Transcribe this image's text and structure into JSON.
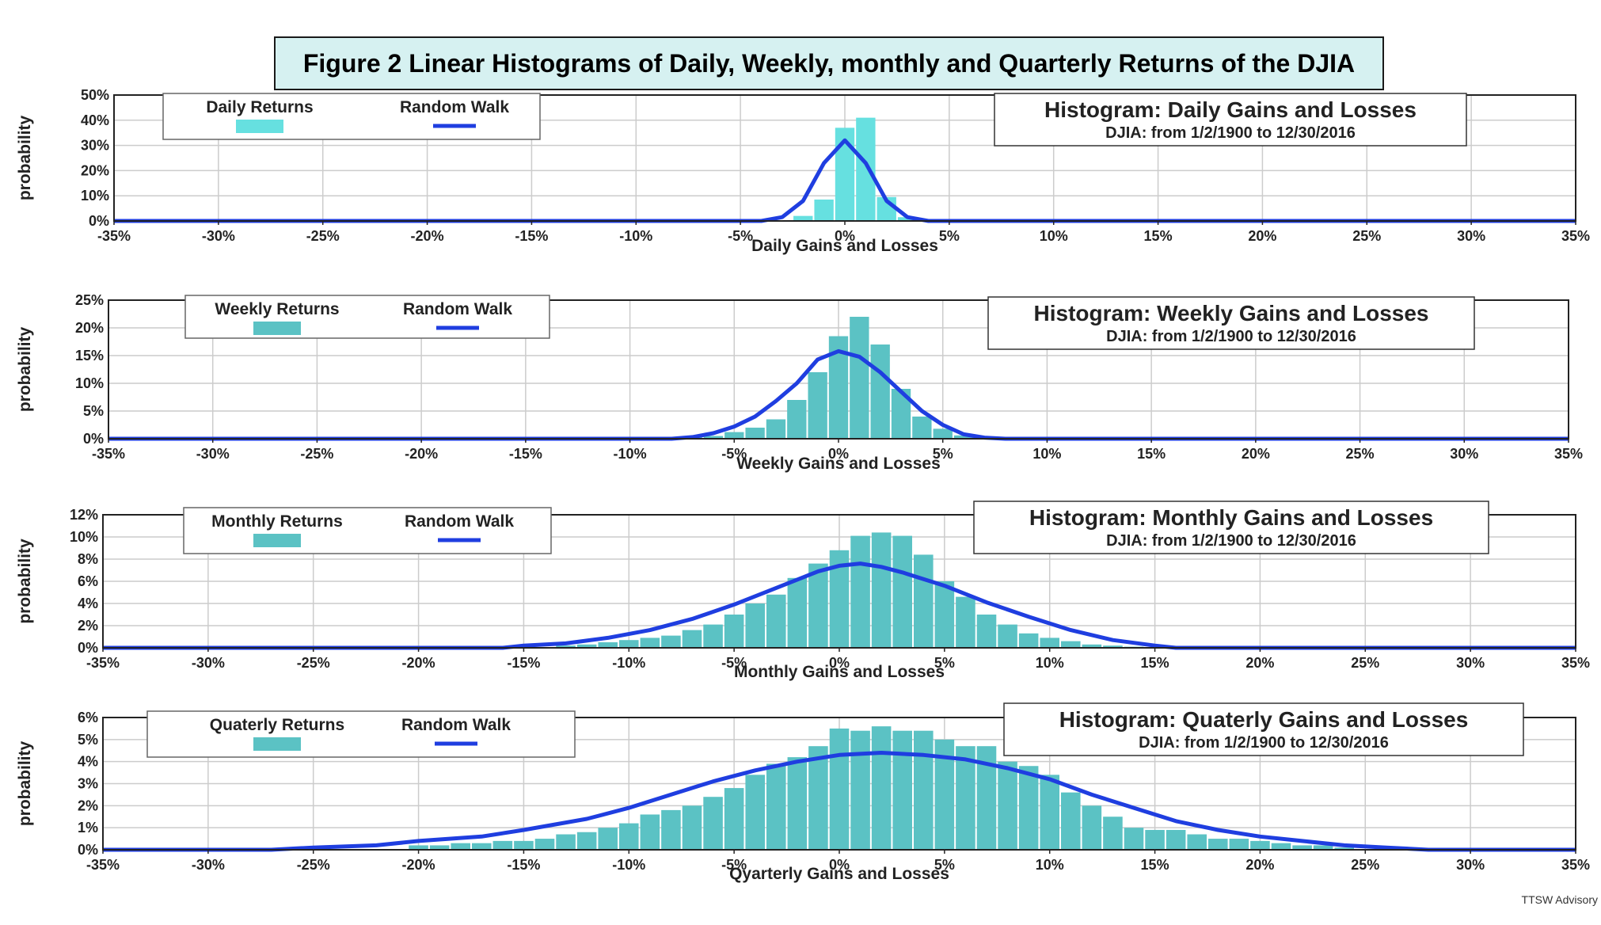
{
  "figure_title": "Figure 2 Linear Histograms of Daily, Weekly, monthly and Quarterly Returns of the DJIA",
  "watermark": "TTSW Advisory",
  "colors": {
    "bar_daily": "#66e0e0",
    "bar_other": "#5bc2c4",
    "line": "#1f3ee0",
    "grid": "#cccccc",
    "axis": "#222222"
  },
  "chart_data": [
    {
      "id": "daily",
      "type": "bar",
      "box_title": "Histogram: Daily Gains and Losses",
      "box_subtitle": "DJIA: from  1/2/1900  to  12/30/2016",
      "legend": [
        "Daily Returns",
        "Random Walk"
      ],
      "ylabel": "probability",
      "xlabel": "Daily Gains and Losses",
      "xlim": [
        -35,
        35
      ],
      "ylim": [
        0,
        50
      ],
      "xticks": [
        -35,
        -30,
        -25,
        -20,
        -15,
        -10,
        -5,
        0,
        5,
        10,
        15,
        20,
        25,
        30,
        35
      ],
      "yticks": [
        0,
        10,
        20,
        30,
        40,
        50
      ],
      "bin_width": 1,
      "bars": [
        [
          -3,
          0.2
        ],
        [
          -2,
          2.0
        ],
        [
          -1,
          8.5
        ],
        [
          0,
          37
        ],
        [
          1,
          41
        ],
        [
          2,
          9.5
        ],
        [
          3,
          1.5
        ],
        [
          4,
          0.3
        ]
      ],
      "random_walk": [
        [
          -35,
          0
        ],
        [
          -4,
          0
        ],
        [
          -3,
          1.5
        ],
        [
          -2,
          8
        ],
        [
          -1,
          23
        ],
        [
          0,
          32
        ],
        [
          1,
          23
        ],
        [
          2,
          8
        ],
        [
          3,
          1.5
        ],
        [
          4,
          0
        ],
        [
          35,
          0
        ]
      ]
    },
    {
      "id": "weekly",
      "type": "bar",
      "box_title": "Histogram: Weekly Gains and Losses",
      "box_subtitle": "DJIA: from  1/2/1900  to  12/30/2016",
      "legend": [
        "Weekly Returns",
        "Random Walk"
      ],
      "ylabel": "probability",
      "xlabel": "Weekly Gains and Losses",
      "xlim": [
        -35,
        35
      ],
      "ylim": [
        0,
        25
      ],
      "xticks": [
        -35,
        -30,
        -25,
        -20,
        -15,
        -10,
        -5,
        0,
        5,
        10,
        15,
        20,
        25,
        30,
        35
      ],
      "yticks": [
        0,
        5,
        10,
        15,
        20,
        25
      ],
      "bin_width": 1,
      "bars": [
        [
          -8,
          0.2
        ],
        [
          -7,
          0.3
        ],
        [
          -6,
          0.5
        ],
        [
          -5,
          1.2
        ],
        [
          -4,
          2.0
        ],
        [
          -3,
          3.5
        ],
        [
          -2,
          7.0
        ],
        [
          -1,
          12
        ],
        [
          0,
          18.5
        ],
        [
          1,
          22
        ],
        [
          2,
          17
        ],
        [
          3,
          9
        ],
        [
          4,
          4.0
        ],
        [
          5,
          1.8
        ],
        [
          6,
          0.6
        ],
        [
          7,
          0.2
        ]
      ],
      "random_walk": [
        [
          -35,
          0
        ],
        [
          -8,
          0
        ],
        [
          -7,
          0.3
        ],
        [
          -6,
          1.0
        ],
        [
          -5,
          2.2
        ],
        [
          -4,
          4.0
        ],
        [
          -3,
          6.8
        ],
        [
          -2,
          10
        ],
        [
          -1,
          14.3
        ],
        [
          0,
          15.8
        ],
        [
          1,
          14.8
        ],
        [
          2,
          12
        ],
        [
          3,
          8.5
        ],
        [
          4,
          5.0
        ],
        [
          5,
          2.5
        ],
        [
          6,
          0.8
        ],
        [
          7,
          0.2
        ],
        [
          8,
          0
        ],
        [
          35,
          0
        ]
      ]
    },
    {
      "id": "monthly",
      "type": "bar",
      "box_title": "Histogram: Monthly Gains and Losses",
      "box_subtitle": "DJIA: from  1/2/1900  to  12/30/2016",
      "legend": [
        "Monthly Returns",
        "Random Walk"
      ],
      "ylabel": "probability",
      "xlabel": "Monthly Gains and Losses",
      "xlim": [
        -35,
        35
      ],
      "ylim": [
        0,
        12
      ],
      "xticks": [
        -35,
        -30,
        -25,
        -20,
        -15,
        -10,
        -5,
        0,
        5,
        10,
        15,
        20,
        25,
        30,
        35
      ],
      "yticks": [
        0,
        2,
        4,
        6,
        8,
        10,
        12
      ],
      "ytick_labels": [
        "0%",
        "2%",
        "4%",
        "6%",
        "8%",
        "10%",
        "12%"
      ],
      "bin_width": 1,
      "bars": [
        [
          -13,
          0.2
        ],
        [
          -12,
          0.3
        ],
        [
          -11,
          0.5
        ],
        [
          -10,
          0.7
        ],
        [
          -9,
          0.9
        ],
        [
          -8,
          1.1
        ],
        [
          -7,
          1.6
        ],
        [
          -6,
          2.1
        ],
        [
          -5,
          3.0
        ],
        [
          -4,
          4.0
        ],
        [
          -3,
          4.8
        ],
        [
          -2,
          6.3
        ],
        [
          -1,
          7.6
        ],
        [
          0,
          8.8
        ],
        [
          1,
          10.1
        ],
        [
          2,
          10.4
        ],
        [
          3,
          10.1
        ],
        [
          4,
          8.4
        ],
        [
          5,
          6.0
        ],
        [
          6,
          4.6
        ],
        [
          7,
          3.0
        ],
        [
          8,
          2.1
        ],
        [
          9,
          1.3
        ],
        [
          10,
          0.9
        ],
        [
          11,
          0.6
        ],
        [
          12,
          0.3
        ],
        [
          13,
          0.2
        ],
        [
          14,
          0.1
        ]
      ],
      "random_walk": [
        [
          -35,
          0
        ],
        [
          -16,
          0
        ],
        [
          -15,
          0.2
        ],
        [
          -13,
          0.4
        ],
        [
          -11,
          0.9
        ],
        [
          -9,
          1.6
        ],
        [
          -7,
          2.6
        ],
        [
          -5,
          3.9
        ],
        [
          -3,
          5.4
        ],
        [
          -1,
          6.9
        ],
        [
          0,
          7.4
        ],
        [
          1,
          7.6
        ],
        [
          2,
          7.3
        ],
        [
          3,
          6.8
        ],
        [
          5,
          5.6
        ],
        [
          7,
          4.1
        ],
        [
          9,
          2.8
        ],
        [
          11,
          1.6
        ],
        [
          13,
          0.7
        ],
        [
          15,
          0.2
        ],
        [
          16,
          0
        ],
        [
          35,
          0
        ]
      ]
    },
    {
      "id": "quarterly",
      "type": "bar",
      "box_title": "Histogram: Quaterly Gains and Losses",
      "box_subtitle": "DJIA: from  1/2/1900  to  12/30/2016",
      "legend": [
        "Quaterly Returns",
        "Random Walk"
      ],
      "ylabel": "probability",
      "xlabel": "Qyarterly Gains and Losses",
      "xlim": [
        -35,
        35
      ],
      "ylim": [
        0,
        6
      ],
      "xticks": [
        -35,
        -30,
        -25,
        -20,
        -15,
        -10,
        -5,
        0,
        5,
        10,
        15,
        20,
        25,
        30,
        35
      ],
      "yticks": [
        0,
        1,
        2,
        3,
        4,
        5,
        6
      ],
      "bin_width": 1,
      "bars": [
        [
          -20,
          0.2
        ],
        [
          -19,
          0.2
        ],
        [
          -18,
          0.3
        ],
        [
          -17,
          0.3
        ],
        [
          -16,
          0.4
        ],
        [
          -15,
          0.4
        ],
        [
          -14,
          0.5
        ],
        [
          -13,
          0.7
        ],
        [
          -12,
          0.8
        ],
        [
          -11,
          1.0
        ],
        [
          -10,
          1.2
        ],
        [
          -9,
          1.6
        ],
        [
          -8,
          1.8
        ],
        [
          -7,
          2.0
        ],
        [
          -6,
          2.4
        ],
        [
          -5,
          2.8
        ],
        [
          -4,
          3.4
        ],
        [
          -3,
          3.9
        ],
        [
          -2,
          4.2
        ],
        [
          -1,
          4.7
        ],
        [
          0,
          5.5
        ],
        [
          1,
          5.4
        ],
        [
          2,
          5.6
        ],
        [
          3,
          5.4
        ],
        [
          4,
          5.4
        ],
        [
          5,
          5.0
        ],
        [
          6,
          4.7
        ],
        [
          7,
          4.7
        ],
        [
          8,
          4.0
        ],
        [
          9,
          3.8
        ],
        [
          10,
          3.4
        ],
        [
          11,
          2.6
        ],
        [
          12,
          2.0
        ],
        [
          13,
          1.5
        ],
        [
          14,
          1.0
        ],
        [
          15,
          0.9
        ],
        [
          16,
          0.9
        ],
        [
          17,
          0.7
        ],
        [
          18,
          0.5
        ],
        [
          19,
          0.5
        ],
        [
          20,
          0.4
        ],
        [
          21,
          0.3
        ],
        [
          22,
          0.2
        ],
        [
          23,
          0.2
        ],
        [
          24,
          0.1
        ]
      ],
      "random_walk": [
        [
          -35,
          0
        ],
        [
          -27,
          0
        ],
        [
          -25,
          0.1
        ],
        [
          -22,
          0.2
        ],
        [
          -20,
          0.4
        ],
        [
          -17,
          0.6
        ],
        [
          -15,
          0.9
        ],
        [
          -12,
          1.4
        ],
        [
          -10,
          1.9
        ],
        [
          -8,
          2.5
        ],
        [
          -6,
          3.1
        ],
        [
          -4,
          3.6
        ],
        [
          -2,
          4.0
        ],
        [
          0,
          4.3
        ],
        [
          2,
          4.4
        ],
        [
          4,
          4.3
        ],
        [
          6,
          4.1
        ],
        [
          8,
          3.7
        ],
        [
          10,
          3.2
        ],
        [
          12,
          2.5
        ],
        [
          14,
          1.9
        ],
        [
          16,
          1.3
        ],
        [
          18,
          0.9
        ],
        [
          20,
          0.6
        ],
        [
          22,
          0.4
        ],
        [
          24,
          0.2
        ],
        [
          26,
          0.1
        ],
        [
          28,
          0
        ],
        [
          35,
          0
        ]
      ]
    }
  ]
}
